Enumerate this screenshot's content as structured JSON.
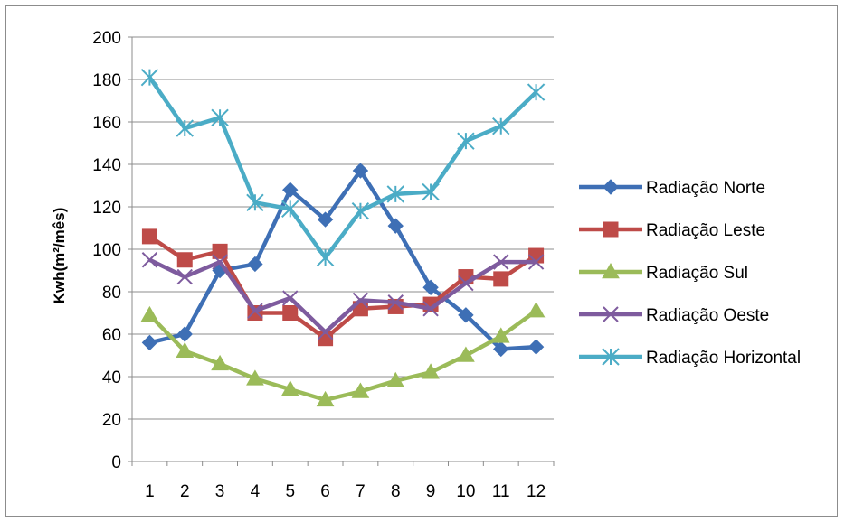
{
  "chart_data": {
    "type": "line",
    "title": "",
    "xlabel": "",
    "ylabel": "Kwh(m²/mês)",
    "x": [
      1,
      2,
      3,
      4,
      5,
      6,
      7,
      8,
      9,
      10,
      11,
      12
    ],
    "ylim": [
      0,
      200
    ],
    "yticks": [
      0,
      20,
      40,
      60,
      80,
      100,
      120,
      140,
      160,
      180,
      200
    ],
    "grid": true,
    "legend_position": "right",
    "series": [
      {
        "name": "Radiação Norte",
        "color": "#3e6fb5",
        "marker": "diamond",
        "values": [
          56,
          60,
          90,
          93,
          128,
          114,
          137,
          111,
          82,
          69,
          53,
          54
        ]
      },
      {
        "name": "Radiação Leste",
        "color": "#be4b48",
        "marker": "square",
        "values": [
          106,
          95,
          99,
          70,
          70,
          58,
          72,
          73,
          74,
          87,
          86,
          97
        ]
      },
      {
        "name": "Radiação Sul",
        "color": "#9bbb59",
        "marker": "triangle",
        "values": [
          69,
          52,
          46,
          39,
          34,
          29,
          33,
          38,
          42,
          50,
          59,
          71
        ]
      },
      {
        "name": "Radiação Oeste",
        "color": "#7e5b9e",
        "marker": "x",
        "values": [
          95,
          87,
          94,
          71,
          77,
          61,
          76,
          75,
          72,
          84,
          94,
          94
        ]
      },
      {
        "name": "Radiação Horizontal",
        "color": "#4bacc6",
        "marker": "asterisk",
        "values": [
          181,
          157,
          162,
          122,
          119,
          96,
          118,
          126,
          127,
          151,
          158,
          174
        ]
      }
    ]
  }
}
